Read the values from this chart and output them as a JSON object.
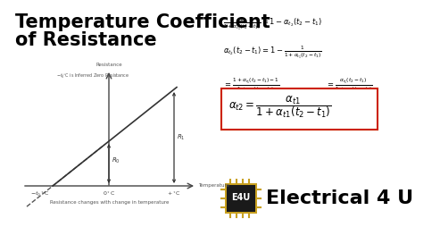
{
  "title_line1": "Temperature Coefficient",
  "title_line2": "of Resistance",
  "background_color": "#ffffff",
  "title_color": "#000000",
  "title_fontsize": 15,
  "formula_color": "#000000",
  "highlight_box_color": "#cc2200",
  "highlight_box_fill": "#ffffff",
  "e4u_text": "Electrical 4 U",
  "e4u_color": "#000000",
  "graph_line_color": "#555555",
  "chip_bg": "#1a1a1a",
  "chip_border": "#c8a020",
  "chip_text_color": "#ffffff",
  "formula1": "$\\frac{1}{1+\\alpha_{t_1}(t_2-t_1)} = 1 - \\alpha_{t_2}(t_2-t_1)$",
  "formula2": "$\\alpha_{t_2}(t_2-t_1) = 1 - \\frac{1}{1+\\alpha_{t_1}(t_2-t_1)}$",
  "formula3_left": "$= \\frac{1+\\alpha_{t_1}(t_2-t_1)-1}{1+\\alpha_{t_1}(t_2-t_1)}$",
  "formula3_right": "$= \\frac{\\alpha_{t_1}(t_2-t_1)}{1+\\alpha_{t_1}(t_2-t_1)}$",
  "formula4": "$\\alpha_{t2} = \\dfrac{\\alpha_{t1}}{1+\\alpha_{t1}(t_2-t_1)}$",
  "caption": "Resistance changes with change in temperature",
  "label_resistance": "Resistance",
  "label_temperature": "Temperature",
  "label_neg_t": "$-t_0$$^\\circ$C",
  "label_0c": "0$^\\circ$C",
  "label_t1": "+$^\\circ$C",
  "label_R0": "$R_0$",
  "label_R1": "$R_1$",
  "annotation": "$- t_0^\\circ$C is Inferred Zero Resistance"
}
